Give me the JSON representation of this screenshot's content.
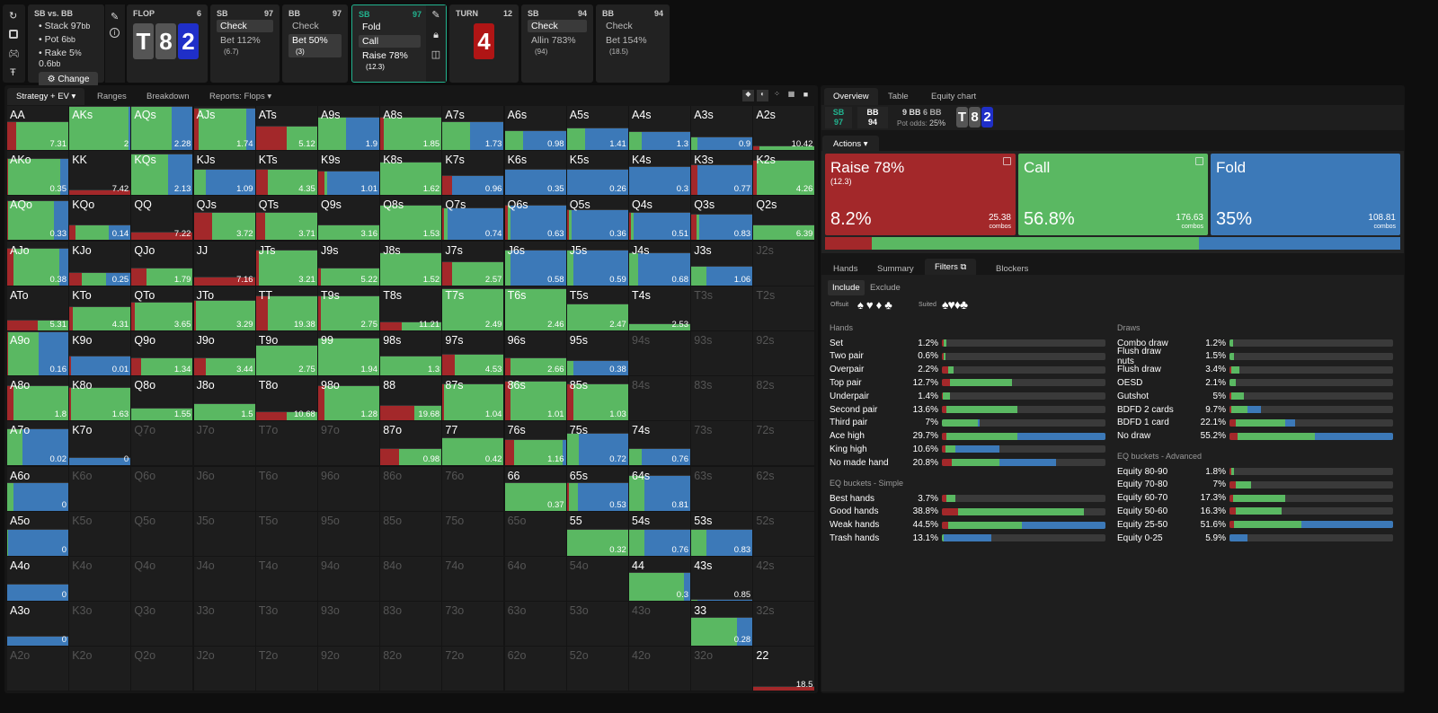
{
  "sidebar_icons": [
    "refresh-icon",
    "save-icon",
    "gamepad-icon",
    "text-height-icon"
  ],
  "game": {
    "title": "SB vs. BB",
    "stack": "Stack 97",
    "stack_unit": "bb",
    "pot": "Pot 6",
    "pot_unit": "bb",
    "rake": "Rake 5",
    "rake_pct": "%",
    "rake_amt": " 0.6",
    "rake_unit": "bb",
    "change": "Change"
  },
  "nav": [
    {
      "title": "FLOP",
      "num": "6",
      "board": [
        "T",
        "8",
        "2"
      ]
    },
    {
      "title": "SB",
      "num": "97",
      "opts": [
        {
          "l": "Check",
          "s": "",
          "sel": true
        },
        {
          "l": "Bet 112%",
          "s": "(6.7)",
          "sel": false
        }
      ]
    },
    {
      "title": "BB",
      "num": "97",
      "opts": [
        {
          "l": "Check",
          "s": "",
          "sel": false
        },
        {
          "l": "Bet 50%",
          "s": "(3)",
          "sel": true
        }
      ]
    },
    {
      "title": "SB",
      "num": "97",
      "opts": [
        {
          "l": "Fold",
          "s": "",
          "sel": false
        },
        {
          "l": "Call",
          "s": "",
          "sel": true
        },
        {
          "l": "Raise 78%",
          "s": "(12.3)",
          "sel": false
        }
      ]
    },
    {
      "title": "TURN",
      "num": "12",
      "board": [
        "4"
      ]
    },
    {
      "title": "SB",
      "num": "94",
      "opts": [
        {
          "l": "Check",
          "s": "",
          "sel": true
        },
        {
          "l": "Allin 783%",
          "s": "(94)",
          "sel": false
        }
      ]
    },
    {
      "title": "BB",
      "num": "94",
      "opts": [
        {
          "l": "Check",
          "s": "",
          "sel": false
        },
        {
          "l": "Bet 154%",
          "s": "(18.5)",
          "sel": false
        }
      ]
    }
  ],
  "left_tabs": [
    "Strategy + EV",
    "Ranges",
    "Breakdown",
    "Reports: Flops"
  ],
  "colors": {
    "raise": "#a3282a",
    "call": "#5ab862",
    "fold": "#3c79b8",
    "accent": "#22b38f"
  },
  "grid": [
    [
      [
        "AA",
        "7.31",
        0.15,
        0.85,
        0,
        0.65
      ],
      [
        "AKs",
        "2",
        0,
        0.97,
        0.03,
        1
      ],
      [
        "AQs",
        "2.28",
        0,
        0.65,
        0.35,
        1
      ],
      [
        "AJs",
        "1.74",
        0.08,
        0.78,
        0.14,
        0.95
      ],
      [
        "ATs",
        "5.12",
        0.5,
        0.5,
        0,
        0.55
      ],
      [
        "A9s",
        "1.9",
        0,
        0.45,
        0.55,
        0.75
      ],
      [
        "A8s",
        "1.85",
        0.05,
        0.95,
        0,
        0.75
      ],
      [
        "A7s",
        "1.73",
        0,
        0.45,
        0.55,
        0.65
      ],
      [
        "A6s",
        "0.98",
        0,
        0.3,
        0.7,
        0.45
      ],
      [
        "A5s",
        "1.41",
        0,
        0.3,
        0.7,
        0.52
      ],
      [
        "A4s",
        "1.3",
        0,
        0.2,
        0.8,
        0.42
      ],
      [
        "A3s",
        "0.9",
        0,
        0.1,
        0.9,
        0.3
      ],
      [
        "A2s",
        "10.42",
        0.1,
        0.9,
        0,
        0.1
      ]
    ],
    [
      [
        "AKo",
        "0.35",
        0.02,
        0.85,
        0.13,
        0.85
      ],
      [
        "KK",
        "7.42",
        1,
        0,
        0,
        0.12
      ],
      [
        "KQs",
        "2.13",
        0,
        0.6,
        0.4,
        0.95
      ],
      [
        "KJs",
        "1.09",
        0,
        0.2,
        0.8,
        0.6
      ],
      [
        "KTs",
        "4.35",
        0.2,
        0.8,
        0,
        0.6
      ],
      [
        "K9s",
        "1.01",
        0.1,
        0.05,
        0.85,
        0.55
      ],
      [
        "K8s",
        "1.62",
        0,
        1,
        0,
        0.75
      ],
      [
        "K7s",
        "0.96",
        0.15,
        0,
        0.85,
        0.45
      ],
      [
        "K6s",
        "0.35",
        0,
        0,
        1,
        0.6
      ],
      [
        "K5s",
        "0.26",
        0,
        0,
        1,
        0.6
      ],
      [
        "K4s",
        "0.3",
        0,
        0,
        1,
        0.65
      ],
      [
        "K3s",
        "0.77",
        0.1,
        0,
        0.9,
        0.7
      ],
      [
        "K2s",
        "4.26",
        0.05,
        0.95,
        0,
        0.8
      ]
    ],
    [
      [
        "AQo",
        "0.33",
        0.02,
        0.75,
        0.23,
        0.9
      ],
      [
        "KQo",
        "0.14",
        0.1,
        0.55,
        0.35,
        0.35
      ],
      [
        "QQ",
        "7.22",
        1,
        0,
        0,
        0.2
      ],
      [
        "QJs",
        "3.72",
        0.3,
        0.7,
        0,
        0.65
      ],
      [
        "QTs",
        "3.71",
        0.15,
        0.85,
        0,
        0.65
      ],
      [
        "Q9s",
        "3.16",
        0,
        1,
        0,
        0.35
      ],
      [
        "Q8s",
        "1.53",
        0,
        1,
        0,
        0.8
      ],
      [
        "Q7s",
        "0.74",
        0.03,
        0.05,
        0.92,
        0.75
      ],
      [
        "Q6s",
        "0.63",
        0.05,
        0.05,
        0.9,
        0.8
      ],
      [
        "Q5s",
        "0.36",
        0.03,
        0.05,
        0.92,
        0.7
      ],
      [
        "Q4s",
        "0.51",
        0.03,
        0.05,
        0.92,
        0.65
      ],
      [
        "Q3s",
        "0.83",
        0.08,
        0.05,
        0.87,
        0.6
      ],
      [
        "Q2s",
        "6.39",
        0,
        1,
        0,
        0.35
      ]
    ],
    [
      [
        "AJo",
        "0.38",
        0.1,
        0.75,
        0.15,
        0.85
      ],
      [
        "KJo",
        "0.25",
        0.2,
        0.4,
        0.4,
        0.3
      ],
      [
        "QJo",
        "1.79",
        0.25,
        0.75,
        0,
        0.4
      ],
      [
        "JJ",
        "7.16",
        1,
        0,
        0,
        0.2
      ],
      [
        "JTs",
        "3.21",
        0.05,
        0.95,
        0,
        0.8
      ],
      [
        "J9s",
        "5.22",
        0.05,
        0.95,
        0,
        0.4
      ],
      [
        "J8s",
        "1.52",
        0,
        1,
        0,
        0.75
      ],
      [
        "J7s",
        "2.57",
        0.15,
        0.85,
        0,
        0.55
      ],
      [
        "J6s",
        "0.58",
        0,
        0.1,
        0.9,
        0.8
      ],
      [
        "J5s",
        "0.59",
        0,
        0.1,
        0.9,
        0.8
      ],
      [
        "J4s",
        "0.68",
        0,
        0.15,
        0.85,
        0.75
      ],
      [
        "J3s",
        "1.06",
        0,
        0.25,
        0.75,
        0.45
      ],
      [
        "J2s"
      ]
    ],
    [
      [
        "ATo",
        "5.31",
        0.5,
        0.5,
        0,
        0.25
      ],
      [
        "KTo",
        "4.31",
        0.05,
        0.95,
        0,
        0.55
      ],
      [
        "QTo",
        "3.65",
        0.05,
        0.95,
        0,
        0.65
      ],
      [
        "JTo",
        "3.29",
        0.03,
        0.97,
        0,
        0.7
      ],
      [
        "TT",
        "19.38",
        0.2,
        0.8,
        0,
        0.8
      ],
      [
        "T9s",
        "2.75",
        0.05,
        0.95,
        0,
        0.8
      ],
      [
        "T8s",
        "11.21",
        0.35,
        0.65,
        0,
        0.2
      ],
      [
        "T7s",
        "2.49",
        0,
        1,
        0,
        0.95
      ],
      [
        "T6s",
        "2.46",
        0,
        1,
        0,
        0.95
      ],
      [
        "T5s",
        "2.47",
        0,
        1,
        0,
        0.6
      ],
      [
        "T4s",
        "2.53",
        0,
        1,
        0,
        0.15
      ],
      [
        "T3s"
      ],
      [
        "T2s"
      ]
    ],
    [
      [
        "A9o",
        "0.16",
        0.02,
        0.5,
        0.48,
        1
      ],
      [
        "K9o",
        "0.01",
        0.03,
        0,
        0.97,
        0.45
      ],
      [
        "Q9o",
        "1.34",
        0.15,
        0.85,
        0,
        0.4
      ],
      [
        "J9o",
        "3.44",
        0.2,
        0.8,
        0,
        0.4
      ],
      [
        "T9o",
        "2.75",
        0,
        1,
        0,
        0.7
      ],
      [
        "99",
        "1.94",
        0,
        1,
        0,
        0.85
      ],
      [
        "98s",
        "1.3",
        0,
        1,
        0,
        0.45
      ],
      [
        "97s",
        "4.53",
        0.2,
        0.8,
        0,
        0.5
      ],
      [
        "96s",
        "2.66",
        0.1,
        0.9,
        0,
        0.4
      ],
      [
        "95s",
        "0.38",
        0,
        0.1,
        0.9,
        0.35
      ],
      [
        "94s"
      ],
      [
        "93s"
      ],
      [
        "92s"
      ]
    ],
    [
      [
        "A8o",
        "1.8",
        0.1,
        0.9,
        0,
        0.8
      ],
      [
        "K8o",
        "1.63",
        0.03,
        0.97,
        0,
        0.75
      ],
      [
        "Q8o",
        "1.55",
        0,
        1,
        0,
        0.3
      ],
      [
        "J8o",
        "1.5",
        0,
        1,
        0,
        0.4
      ],
      [
        "T8o",
        "10.68",
        0.5,
        0.5,
        0,
        0.2
      ],
      [
        "98o",
        "1.28",
        0.1,
        0.9,
        0,
        0.8
      ],
      [
        "88",
        "19.68",
        0.55,
        0.45,
        0,
        0.35
      ],
      [
        "87s",
        "1.04",
        0.02,
        0.98,
        0,
        0.85
      ],
      [
        "86s",
        "1.01",
        0.1,
        0.9,
        0,
        0.9
      ],
      [
        "85s",
        "1.03",
        0.1,
        0.9,
        0,
        0.85
      ],
      [
        "84s"
      ],
      [
        "83s"
      ],
      [
        "82s"
      ]
    ],
    [
      [
        "A7o",
        "0.02",
        0,
        0.25,
        0.75,
        0.85
      ],
      [
        "K7o",
        "0",
        0,
        0,
        1,
        0.2
      ],
      [
        "Q7o"
      ],
      [
        "J7o"
      ],
      [
        "T7o"
      ],
      [
        "97o"
      ],
      [
        "87o",
        "0.98",
        0.3,
        0.7,
        0,
        0.4
      ],
      [
        "77",
        "0.42",
        0,
        1,
        0,
        0.65
      ],
      [
        "76s",
        "1.16",
        0.15,
        0.8,
        0.05,
        0.6
      ],
      [
        "75s",
        "0.72",
        0,
        0.2,
        0.8,
        0.75
      ],
      [
        "74s",
        "0.76",
        0,
        0.2,
        0.8,
        0.4
      ],
      [
        "73s"
      ],
      [
        "72s"
      ]
    ],
    [
      [
        "A6o",
        "0",
        0,
        0.1,
        0.9,
        0.65
      ],
      [
        "K6o"
      ],
      [
        "Q6o"
      ],
      [
        "J6o"
      ],
      [
        "T6o"
      ],
      [
        "96o"
      ],
      [
        "86o"
      ],
      [
        "76o"
      ],
      [
        "66",
        "0.37",
        0,
        1,
        0,
        0.65
      ],
      [
        "65s",
        "0.53",
        0.03,
        0.15,
        0.82,
        0.65
      ],
      [
        "64s",
        "0.81",
        0,
        0.25,
        0.75,
        0.8
      ],
      [
        "63s"
      ],
      [
        "62s"
      ]
    ],
    [
      [
        "A5o",
        "0",
        0,
        0.02,
        0.98,
        0.6
      ],
      [
        "K5o"
      ],
      [
        "Q5o"
      ],
      [
        "J5o"
      ],
      [
        "T5o"
      ],
      [
        "95o"
      ],
      [
        "85o"
      ],
      [
        "75o"
      ],
      [
        "65o"
      ],
      [
        "55",
        "0.32",
        0,
        1,
        0,
        0.6
      ],
      [
        "54s",
        "0.76",
        0,
        0.25,
        0.75,
        0.6
      ],
      [
        "53s",
        "0.83",
        0,
        0.25,
        0.75,
        0.6
      ],
      [
        "52s"
      ]
    ],
    [
      [
        "A4o",
        "0",
        0,
        0,
        1,
        0.38
      ],
      [
        "K4o"
      ],
      [
        "Q4o"
      ],
      [
        "J4o"
      ],
      [
        "T4o"
      ],
      [
        "94o"
      ],
      [
        "84o"
      ],
      [
        "74o"
      ],
      [
        "64o"
      ],
      [
        "54o"
      ],
      [
        "44",
        "0.3",
        0,
        0.9,
        0.1,
        0.65
      ],
      [
        "43s",
        "0.85",
        0,
        0.1,
        0.9,
        0.05
      ],
      [
        "42s"
      ]
    ],
    [
      [
        "A3o",
        "0",
        0,
        0,
        1,
        0.22
      ],
      [
        "K3o"
      ],
      [
        "Q3o"
      ],
      [
        "J3o"
      ],
      [
        "T3o"
      ],
      [
        "93o"
      ],
      [
        "83o"
      ],
      [
        "73o"
      ],
      [
        "63o"
      ],
      [
        "53o"
      ],
      [
        "43o"
      ],
      [
        "33",
        "0.28",
        0,
        0.75,
        0.25,
        0.65
      ],
      [
        "32s"
      ]
    ],
    [
      [
        "A2o"
      ],
      [
        "K2o"
      ],
      [
        "Q2o"
      ],
      [
        "J2o"
      ],
      [
        "T2o"
      ],
      [
        "92o"
      ],
      [
        "82o"
      ],
      [
        "72o"
      ],
      [
        "62o"
      ],
      [
        "52o"
      ],
      [
        "42o"
      ],
      [
        "32o"
      ],
      [
        "22",
        "18.5",
        1,
        0,
        0,
        0.12
      ]
    ]
  ],
  "right_tabs": [
    "Overview",
    "Table",
    "Equity chart"
  ],
  "info": {
    "sb": "SB",
    "sb_stack": "97",
    "bb": "BB",
    "bb_stack": "94",
    "pot1": "9 BB",
    "pot2": "6 BB",
    "pot_odds_label": "Pot odds:",
    "pot_odds": "25%",
    "board": [
      "T",
      "8",
      "2"
    ]
  },
  "actions_label": "Actions",
  "actions": [
    {
      "name": "Raise 78%",
      "sub": "(12.3)",
      "pct": "8.2%",
      "combos": "25.38",
      "unit": "combos",
      "freq": 8.2
    },
    {
      "name": "Call",
      "sub": "",
      "pct": "56.8%",
      "combos": "176.63",
      "unit": "combos",
      "freq": 56.8
    },
    {
      "name": "Fold",
      "sub": "",
      "pct": "35%",
      "combos": "108.81",
      "unit": "combos",
      "freq": 35
    }
  ],
  "sub_tabs": [
    "Hands",
    "Summary",
    "Filters",
    "Blockers"
  ],
  "filter_modes": [
    "Include",
    "Exclude"
  ],
  "offsuit_label": "Offsuit",
  "suited_label": "Suited",
  "suits": [
    "♠",
    "♥",
    "♦",
    "♣"
  ],
  "hands_title": "Hands",
  "hands": [
    [
      "Set",
      "1.2%",
      0.01,
      0.02,
      0
    ],
    [
      "Two pair",
      "0.6%",
      0.01,
      0.01,
      0
    ],
    [
      "Overpair",
      "2.2%",
      0.04,
      0.03,
      0
    ],
    [
      "Top pair",
      "12.7%",
      0.05,
      0.38,
      0
    ],
    [
      "Underpair",
      "1.4%",
      0.005,
      0.045,
      0
    ],
    [
      "Second pair",
      "13.6%",
      0.03,
      0.43,
      0
    ],
    [
      "Third pair",
      "7%",
      0,
      0.22,
      0.01
    ],
    [
      "Ace high",
      "29.7%",
      0.03,
      0.43,
      0.54
    ],
    [
      "King high",
      "10.6%",
      0.02,
      0.06,
      0.27
    ],
    [
      "No made hand",
      "20.8%",
      0.06,
      0.29,
      0.35
    ]
  ],
  "eq_simple_title": "EQ buckets - Simple",
  "eq_simple": [
    [
      "Best hands",
      "3.7%",
      0.03,
      0.05,
      0
    ],
    [
      "Good hands",
      "38.8%",
      0.1,
      0.77,
      0
    ],
    [
      "Weak hands",
      "44.5%",
      0.04,
      0.45,
      0.51
    ],
    [
      "Trash hands",
      "13.1%",
      0,
      0.01,
      0.29
    ]
  ],
  "draws_title": "Draws",
  "draws": [
    [
      "Combo draw",
      "1.2%",
      0,
      0.02,
      0
    ],
    [
      "Flush draw nuts",
      "1.5%",
      0,
      0.025,
      0
    ],
    [
      "Flush draw",
      "3.4%",
      0.01,
      0.05,
      0
    ],
    [
      "OESD",
      "2.1%",
      0,
      0.04,
      0
    ],
    [
      "Gutshot",
      "5%",
      0.01,
      0.08,
      0
    ],
    [
      "BDFD 2 cards",
      "9.7%",
      0.01,
      0.1,
      0.08
    ],
    [
      "BDFD 1 card",
      "22.1%",
      0.04,
      0.3,
      0.06
    ],
    [
      "No draw",
      "55.2%",
      0.05,
      0.47,
      0.48
    ]
  ],
  "eq_adv_title": "EQ buckets - Advanced",
  "eq_adv": [
    [
      "Equity 80-90",
      "1.8%",
      0.01,
      0.02,
      0
    ],
    [
      "Equity 70-80",
      "7%",
      0.04,
      0.09,
      0
    ],
    [
      "Equity 60-70",
      "17.3%",
      0.02,
      0.32,
      0
    ],
    [
      "Equity 50-60",
      "16.3%",
      0.04,
      0.28,
      0
    ],
    [
      "Equity 25-50",
      "51.6%",
      0.03,
      0.41,
      0.56
    ],
    [
      "Equity 0-25",
      "5.9%",
      0,
      0,
      0.11
    ]
  ]
}
